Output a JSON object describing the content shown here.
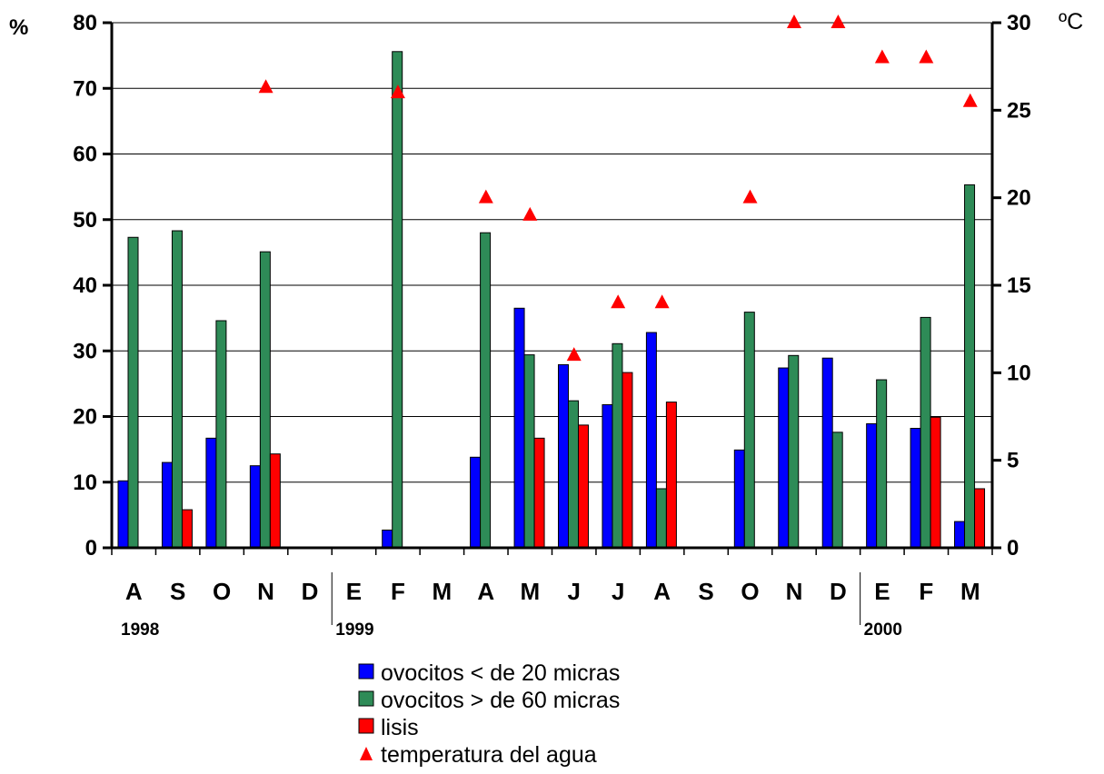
{
  "chart_data": {
    "type": "bar",
    "categories": [
      "A",
      "S",
      "O",
      "N",
      "D",
      "E",
      "F",
      "M",
      "A",
      "M",
      "J",
      "J",
      "A",
      "S",
      "O",
      "N",
      "D",
      "E",
      "F",
      "M"
    ],
    "years": [
      {
        "label": "1998",
        "at_index": 0
      },
      {
        "label": "1999",
        "at_index": 5
      },
      {
        "label": "2000",
        "at_index": 17
      }
    ],
    "series": [
      {
        "name": "ovocitos < de 20 micras",
        "type": "bar",
        "axis": "left",
        "color": "#0000ff",
        "values": [
          10.2,
          13.0,
          16.7,
          12.5,
          null,
          null,
          2.7,
          null,
          13.8,
          36.5,
          27.9,
          21.8,
          32.8,
          null,
          14.9,
          27.4,
          28.9,
          18.9,
          18.2,
          4.0
        ]
      },
      {
        "name": "ovocitos > de 60 micras",
        "type": "bar",
        "axis": "left",
        "color": "#2e8b57",
        "values": [
          47.3,
          48.3,
          34.6,
          45.1,
          null,
          null,
          75.6,
          null,
          48.0,
          29.4,
          22.4,
          31.1,
          9.0,
          null,
          35.9,
          29.3,
          17.6,
          25.6,
          35.1,
          55.3
        ]
      },
      {
        "name": "lisis",
        "type": "bar",
        "axis": "left",
        "color": "#ff0000",
        "values": [
          null,
          5.8,
          null,
          14.3,
          null,
          null,
          null,
          null,
          null,
          16.7,
          18.7,
          26.7,
          22.2,
          null,
          null,
          null,
          null,
          null,
          19.9,
          9.0
        ]
      },
      {
        "name": "temperatura del agua",
        "type": "scatter",
        "axis": "right",
        "color": "#ff0000",
        "marker": "triangle",
        "values": [
          null,
          null,
          null,
          26.3,
          null,
          null,
          26.0,
          null,
          20.0,
          19.0,
          11.0,
          14.0,
          14.0,
          null,
          20.0,
          30.0,
          30.0,
          28.0,
          28.0,
          25.5
        ]
      }
    ],
    "y_left": {
      "label": "%",
      "ylim": [
        0,
        80
      ],
      "ticks": [
        0,
        10,
        20,
        30,
        40,
        50,
        60,
        70,
        80
      ]
    },
    "y_right": {
      "label": "ºC",
      "ylim": [
        0,
        30
      ],
      "ticks": [
        0,
        5,
        10,
        15,
        20,
        25,
        30
      ]
    },
    "grid": true,
    "legend_position": "bottom"
  }
}
